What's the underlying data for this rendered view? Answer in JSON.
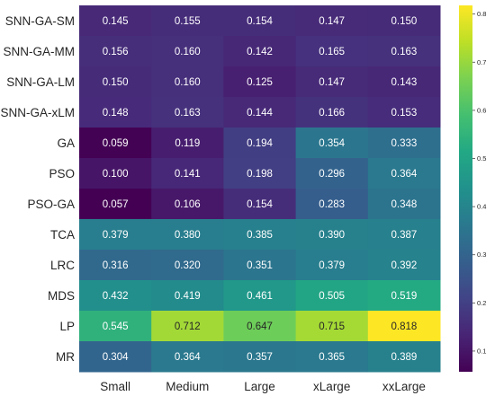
{
  "chart_data": {
    "type": "heatmap",
    "title": "",
    "xlabel": "",
    "ylabel": "",
    "columns": [
      "Small",
      "Medium",
      "Large",
      "xLarge",
      "xxLarge"
    ],
    "rows": [
      "SNN-GA-SM",
      "SNN-GA-MM",
      "SNN-GA-LM",
      "SNN-GA-xLM",
      "GA",
      "PSO",
      "PSO-GA",
      "TCA",
      "LRC",
      "MDS",
      "LP",
      "MR"
    ],
    "values": [
      [
        0.145,
        0.155,
        0.154,
        0.147,
        0.15
      ],
      [
        0.156,
        0.16,
        0.142,
        0.165,
        0.163
      ],
      [
        0.15,
        0.16,
        0.125,
        0.147,
        0.143
      ],
      [
        0.148,
        0.163,
        0.144,
        0.166,
        0.153
      ],
      [
        0.059,
        0.119,
        0.194,
        0.354,
        0.333
      ],
      [
        0.1,
        0.141,
        0.198,
        0.296,
        0.364
      ],
      [
        0.057,
        0.106,
        0.154,
        0.283,
        0.348
      ],
      [
        0.379,
        0.38,
        0.385,
        0.39,
        0.387
      ],
      [
        0.316,
        0.32,
        0.351,
        0.379,
        0.392
      ],
      [
        0.432,
        0.419,
        0.461,
        0.505,
        0.519
      ],
      [
        0.545,
        0.712,
        0.647,
        0.715,
        0.818
      ],
      [
        0.304,
        0.364,
        0.357,
        0.365,
        0.389
      ]
    ],
    "value_labels": [
      [
        "0.145",
        "0.155",
        "0.154",
        "0.147",
        "0.150"
      ],
      [
        "0.156",
        "0.160",
        "0.142",
        "0.165",
        "0.163"
      ],
      [
        "0.150",
        "0.160",
        "0.125",
        "0.147",
        "0.143"
      ],
      [
        "0.148",
        "0.163",
        "0.144",
        "0.166",
        "0.153"
      ],
      [
        "0.059",
        "0.119",
        "0.194",
        "0.354",
        "0.333"
      ],
      [
        "0.100",
        "0.141",
        "0.198",
        "0.296",
        "0.364"
      ],
      [
        "0.057",
        "0.106",
        "0.154",
        "0.283",
        "0.348"
      ],
      [
        "0.379",
        "0.380",
        "0.385",
        "0.390",
        "0.387"
      ],
      [
        "0.316",
        "0.320",
        "0.351",
        "0.379",
        "0.392"
      ],
      [
        "0.432",
        "0.419",
        "0.461",
        "0.505",
        "0.519"
      ],
      [
        "0.545",
        "0.712",
        "0.647",
        "0.715",
        "0.818"
      ],
      [
        "0.304",
        "0.364",
        "0.357",
        "0.365",
        "0.389"
      ]
    ],
    "colormap": "viridis",
    "vmin": 0.057,
    "vmax": 0.818,
    "colorbar_ticks": [
      "0.1",
      "0.2",
      "0.3",
      "0.4",
      "0.5",
      "0.6",
      "0.7",
      "0.8"
    ],
    "grid": false,
    "legend": "colorbar-right"
  }
}
